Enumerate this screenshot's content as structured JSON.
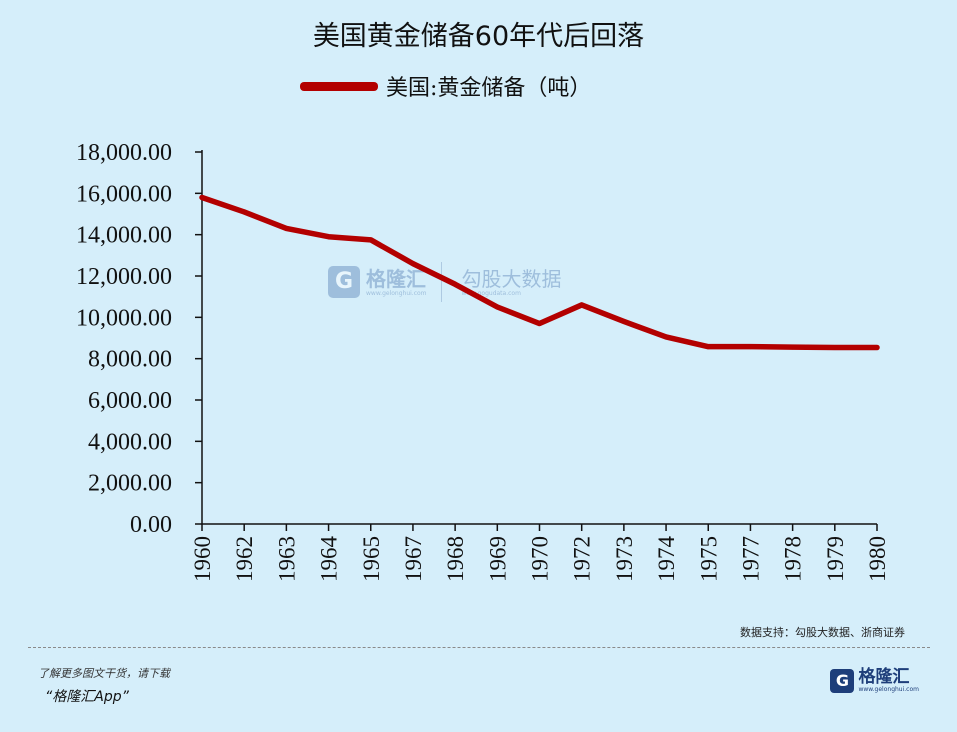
{
  "title": "美国黄金储备60年代后回落",
  "source": "数据支持：勾股大数据、浙商证券",
  "promo_text": "了解更多图文干货，请下载",
  "app_name": "“格隆汇App”",
  "brand": {
    "name": "格隆汇",
    "logo_letter": "G",
    "url": "www.gelonghui.com"
  },
  "watermark": {
    "name1": "格隆汇",
    "url1": "www.gelonghui.com",
    "name2": "勾股大数据",
    "url2": "www.gogudata.com"
  },
  "colors": {
    "line": "#b30000",
    "background": "#d5eefa",
    "axis": "#111111"
  },
  "chart_data": {
    "type": "line",
    "title": "美国黄金储备60年代后回落",
    "x": [
      "1960",
      "1962",
      "1963",
      "1964",
      "1965",
      "1967",
      "1968",
      "1969",
      "1970",
      "1972",
      "1973",
      "1974",
      "1975",
      "1977",
      "1978",
      "1979",
      "1980"
    ],
    "series": [
      {
        "name": "美国:黄金储备（吨）",
        "values": [
          15800,
          15100,
          14300,
          13900,
          13750,
          12600,
          11600,
          10500,
          9700,
          10600,
          9800,
          9050,
          8580,
          8580,
          8560,
          8540,
          8540
        ]
      }
    ],
    "y_ticks": [
      "0.00",
      "2,000.00",
      "4,000.00",
      "6,000.00",
      "8,000.00",
      "10,000.00",
      "12,000.00",
      "14,000.00",
      "16,000.00",
      "18,000.00"
    ],
    "ylim": [
      0,
      18000
    ],
    "grid": false,
    "legend_position": "top-center"
  }
}
